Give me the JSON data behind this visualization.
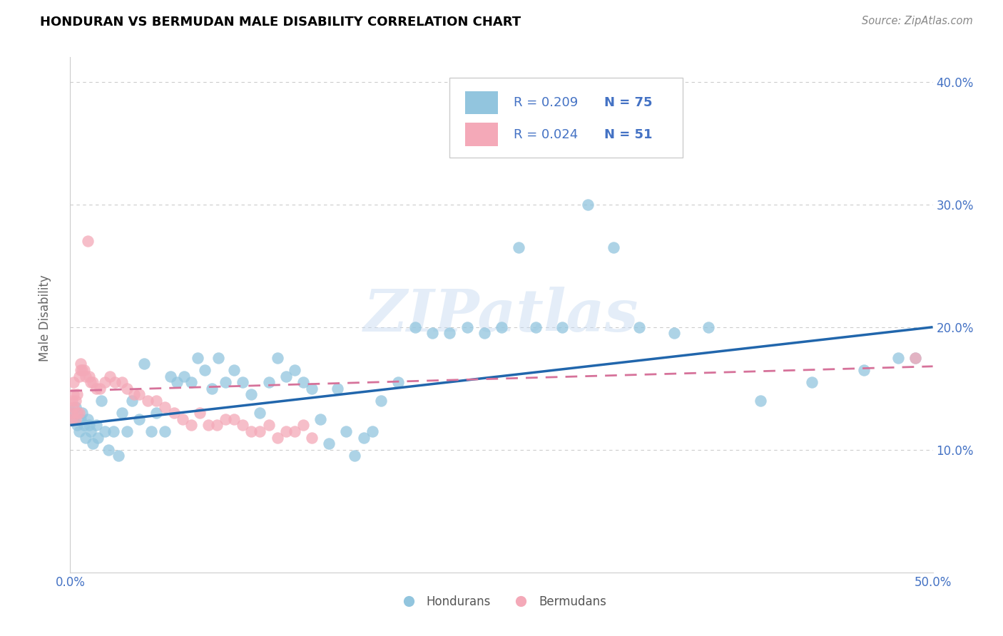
{
  "title": "HONDURAN VS BERMUDAN MALE DISABILITY CORRELATION CHART",
  "source": "Source: ZipAtlas.com",
  "ylabel": "Male Disability",
  "xlim": [
    0.0,
    0.5
  ],
  "ylim": [
    0.0,
    0.42
  ],
  "xticks": [
    0.0,
    0.1,
    0.2,
    0.3,
    0.4,
    0.5
  ],
  "yticks": [
    0.1,
    0.2,
    0.3,
    0.4
  ],
  "xtick_labels": [
    "0.0%",
    "",
    "",
    "",
    "",
    "50.0%"
  ],
  "ytick_labels": [
    "10.0%",
    "20.0%",
    "30.0%",
    "40.0%"
  ],
  "legend_r1": "R = 0.209",
  "legend_n1": "N = 75",
  "legend_r2": "R = 0.024",
  "legend_n2": "N = 51",
  "color_hondurans": "#92c5de",
  "color_bermudans": "#f4a9b8",
  "color_line1": "#2166ac",
  "color_line2": "#d6729a",
  "watermark": "ZIPatlas",
  "footer_label1": "Hondurans",
  "footer_label2": "Bermudans",
  "hondurans_x": [
    0.001,
    0.002,
    0.003,
    0.004,
    0.005,
    0.006,
    0.007,
    0.008,
    0.009,
    0.01,
    0.011,
    0.012,
    0.013,
    0.015,
    0.016,
    0.018,
    0.02,
    0.022,
    0.025,
    0.028,
    0.03,
    0.033,
    0.036,
    0.04,
    0.043,
    0.047,
    0.05,
    0.055,
    0.058,
    0.062,
    0.066,
    0.07,
    0.074,
    0.078,
    0.082,
    0.086,
    0.09,
    0.095,
    0.1,
    0.105,
    0.11,
    0.115,
    0.12,
    0.125,
    0.13,
    0.135,
    0.14,
    0.145,
    0.15,
    0.155,
    0.16,
    0.165,
    0.17,
    0.175,
    0.18,
    0.19,
    0.2,
    0.21,
    0.22,
    0.23,
    0.24,
    0.25,
    0.26,
    0.27,
    0.285,
    0.3,
    0.315,
    0.33,
    0.35,
    0.37,
    0.4,
    0.43,
    0.46,
    0.48,
    0.49
  ],
  "hondurans_y": [
    0.13,
    0.125,
    0.135,
    0.12,
    0.115,
    0.125,
    0.13,
    0.12,
    0.11,
    0.125,
    0.12,
    0.115,
    0.105,
    0.12,
    0.11,
    0.14,
    0.115,
    0.1,
    0.115,
    0.095,
    0.13,
    0.115,
    0.14,
    0.125,
    0.17,
    0.115,
    0.13,
    0.115,
    0.16,
    0.155,
    0.16,
    0.155,
    0.175,
    0.165,
    0.15,
    0.175,
    0.155,
    0.165,
    0.155,
    0.145,
    0.13,
    0.155,
    0.175,
    0.16,
    0.165,
    0.155,
    0.15,
    0.125,
    0.105,
    0.15,
    0.115,
    0.095,
    0.11,
    0.115,
    0.14,
    0.155,
    0.2,
    0.195,
    0.195,
    0.2,
    0.195,
    0.2,
    0.265,
    0.2,
    0.2,
    0.3,
    0.265,
    0.2,
    0.195,
    0.2,
    0.14,
    0.155,
    0.165,
    0.175,
    0.175
  ],
  "bermudans_x": [
    0.001,
    0.001,
    0.001,
    0.002,
    0.002,
    0.002,
    0.003,
    0.003,
    0.004,
    0.004,
    0.005,
    0.005,
    0.006,
    0.006,
    0.007,
    0.008,
    0.009,
    0.01,
    0.011,
    0.012,
    0.013,
    0.015,
    0.017,
    0.02,
    0.023,
    0.026,
    0.03,
    0.033,
    0.037,
    0.04,
    0.045,
    0.05,
    0.055,
    0.06,
    0.065,
    0.07,
    0.075,
    0.08,
    0.085,
    0.09,
    0.095,
    0.1,
    0.105,
    0.11,
    0.115,
    0.12,
    0.125,
    0.13,
    0.135,
    0.14,
    0.49
  ],
  "bermudans_y": [
    0.13,
    0.125,
    0.14,
    0.135,
    0.145,
    0.155,
    0.125,
    0.14,
    0.13,
    0.145,
    0.13,
    0.16,
    0.17,
    0.165,
    0.165,
    0.165,
    0.16,
    0.27,
    0.16,
    0.155,
    0.155,
    0.15,
    0.15,
    0.155,
    0.16,
    0.155,
    0.155,
    0.15,
    0.145,
    0.145,
    0.14,
    0.14,
    0.135,
    0.13,
    0.125,
    0.12,
    0.13,
    0.12,
    0.12,
    0.125,
    0.125,
    0.12,
    0.115,
    0.115,
    0.12,
    0.11,
    0.115,
    0.115,
    0.12,
    0.11,
    0.175
  ],
  "line1_x0": 0.0,
  "line1_x1": 0.5,
  "line1_y0": 0.12,
  "line1_y1": 0.2,
  "line2_x0": 0.0,
  "line2_x1": 0.5,
  "line2_y0": 0.148,
  "line2_y1": 0.168
}
